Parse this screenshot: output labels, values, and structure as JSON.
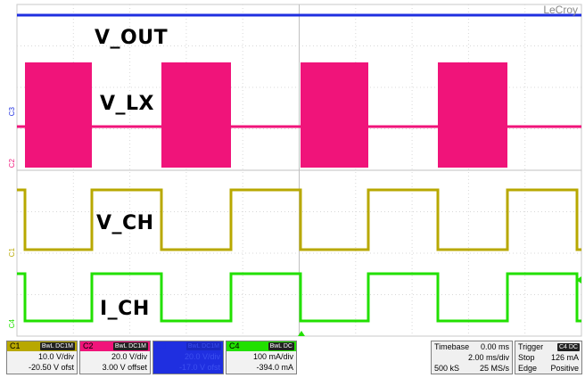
{
  "brand": "LeCroy",
  "traces": {
    "vout": {
      "label": "V_OUT",
      "color": "#1f2fe0"
    },
    "vlx": {
      "label": "V_LX",
      "color": "#f0147a"
    },
    "vch": {
      "label": "V_CH",
      "color": "#b8a800"
    },
    "ich": {
      "label": "I_CH",
      "color": "#22e000"
    }
  },
  "markers": {
    "c2": "C2",
    "c3": "C3",
    "c1": "C1",
    "c4": "C4"
  },
  "channels": [
    {
      "name": "C1",
      "tags": "BwL DC1M",
      "scale": "10.0 V/div",
      "offset": "-20.50 V ofst",
      "color": "#b8a800"
    },
    {
      "name": "C2",
      "tags": "BwL DC1M",
      "scale": "20.0 V/div",
      "offset": "3.00 V offset",
      "color": "#f0147a"
    },
    {
      "name": "C3",
      "tags": "BwL DC1M",
      "scale": "20.0 V/div",
      "offset": "-17.0 V ofst",
      "color": "#1f2fe0"
    },
    {
      "name": "C4",
      "tags": "BwL DC",
      "scale": "100 mA/div",
      "offset": "-394.0 mA",
      "color": "#22e000"
    }
  ],
  "timebase": {
    "label": "Timebase",
    "delay": "0.00 ms",
    "div": "2.00 ms/div",
    "samples": "500 kS",
    "rate": "25 MS/s"
  },
  "trigger": {
    "label": "Trigger",
    "tags": "C4 DC",
    "mode": "Stop",
    "level": "126 mA",
    "type": "Edge",
    "slope": "Positive"
  }
}
